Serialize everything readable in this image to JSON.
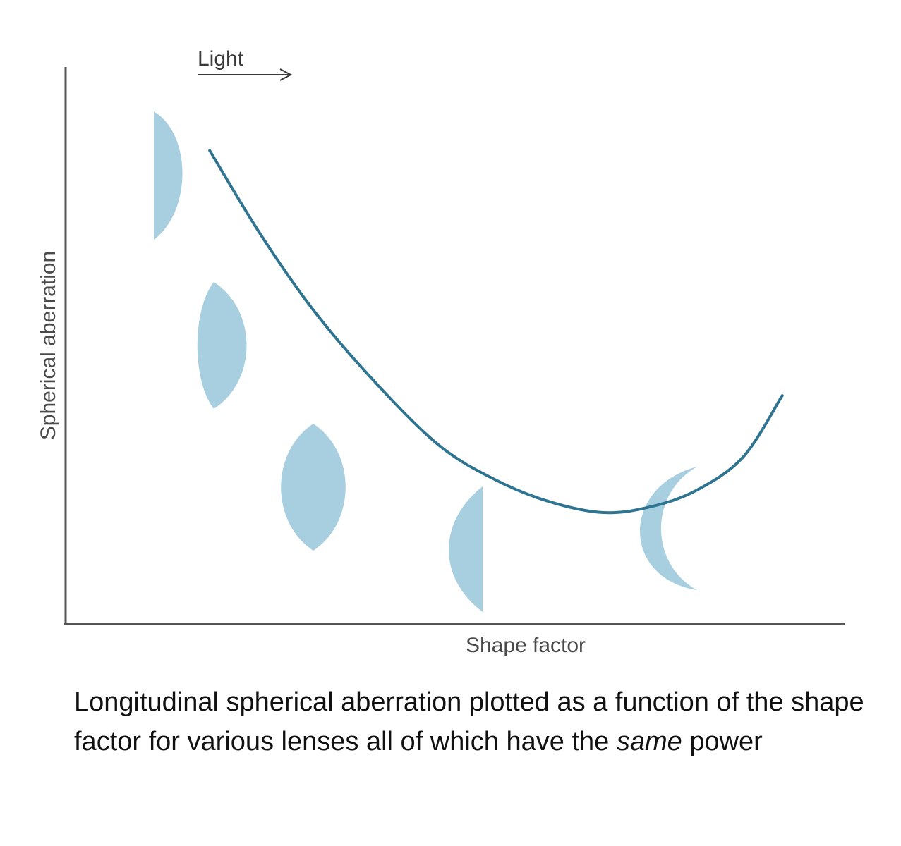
{
  "chart_data": {
    "type": "line",
    "title": "",
    "xlabel": "Shape factor",
    "ylabel": "Spherical aberration",
    "xlim": [
      0,
      1
    ],
    "ylim": [
      0,
      1
    ],
    "x_ticks": [],
    "y_ticks": [],
    "grid": false,
    "series": [
      {
        "name": "Longitudinal spherical aberration",
        "x": [
          0.185,
          0.25,
          0.32,
          0.4,
          0.48,
          0.55,
          0.62,
          0.69,
          0.75,
          0.81,
          0.87,
          0.92
        ],
        "values": [
          0.85,
          0.7,
          0.56,
          0.43,
          0.32,
          0.26,
          0.22,
          0.2,
          0.21,
          0.24,
          0.3,
          0.41
        ]
      }
    ],
    "annotations": [
      {
        "text": "Light",
        "arrow": "right",
        "position": "top-left"
      }
    ],
    "lens_icons": [
      {
        "shape": "plano-convex",
        "x": 0.13,
        "y": 0.82
      },
      {
        "shape": "biconvex-asymmetric",
        "x": 0.2,
        "y": 0.51
      },
      {
        "shape": "biconvex",
        "x": 0.32,
        "y": 0.25
      },
      {
        "shape": "convex-plano",
        "x": 0.54,
        "y": 0.14
      },
      {
        "shape": "meniscus",
        "x": 0.79,
        "y": 0.17
      }
    ],
    "colors": {
      "curve": "#2f7490",
      "lens": "#a8cfe0",
      "axis": "#555555"
    }
  },
  "caption": {
    "main": "Longitudinal spherical aberration plotted as a function of the shape factor for various lenses all of which have the",
    "emphasis": "same",
    "tail": "power"
  }
}
